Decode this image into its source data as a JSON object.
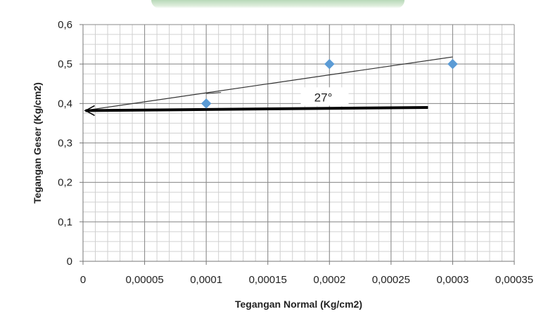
{
  "chart_data": {
    "type": "scatter",
    "xlabel": "Tegangan Normal (Kg/cm2)",
    "ylabel": "Tegangan Geser (Kg/cm2)",
    "xlim": [
      0,
      0.00035
    ],
    "ylim": [
      0,
      0.6
    ],
    "x_ticks": [
      0,
      5e-05,
      0.0001,
      0.00015,
      0.0002,
      0.00025,
      0.0003,
      0.00035
    ],
    "x_tick_labels": [
      "0",
      "0,00005",
      "0,0001",
      "0,00015",
      "0,0002",
      "0,00025",
      "0,0003",
      "0,00035"
    ],
    "y_ticks": [
      0,
      0.1,
      0.2,
      0.3,
      0.4,
      0.5,
      0.6
    ],
    "y_tick_labels": [
      "0",
      "0,1",
      "0,2",
      "0,3",
      "0,4",
      "0,5",
      "0,6"
    ],
    "grid": true,
    "series": [
      {
        "marker": "diamond",
        "color": "#5b9bd5",
        "points": [
          {
            "x": 0.0001,
            "y": 0.4
          },
          {
            "x": 0.0002,
            "y": 0.5
          },
          {
            "x": 0.0003,
            "y": 0.5
          }
        ]
      }
    ],
    "lines": [
      {
        "kind": "trend",
        "color": "#333333",
        "from": {
          "x": 1e-06,
          "y": 0.382
        },
        "to": {
          "x": 0.0003,
          "y": 0.518
        }
      },
      {
        "kind": "reference",
        "color": "#000000",
        "arrow": "start",
        "from": {
          "x": 2e-06,
          "y": 0.382
        },
        "to": {
          "x": 0.00028,
          "y": 0.39
        }
      }
    ],
    "annotations": [
      {
        "text": "27°",
        "x": 0.000195,
        "y": 0.416
      }
    ]
  }
}
